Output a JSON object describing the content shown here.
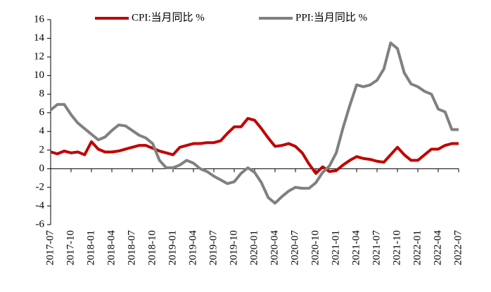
{
  "chart_data": {
    "type": "line",
    "categories": [
      "2017-07",
      null,
      null,
      "2017-10",
      null,
      null,
      "2018-01",
      null,
      null,
      "2018-04",
      null,
      null,
      "2018-07",
      null,
      null,
      "2018-10",
      null,
      null,
      "2019-01",
      null,
      null,
      "2019-04",
      null,
      null,
      "2019-07",
      null,
      null,
      "2019-10",
      null,
      null,
      "2020-01",
      null,
      null,
      "2020-04",
      null,
      null,
      "2020-07",
      null,
      null,
      "2020-10",
      null,
      null,
      "2021-01",
      null,
      null,
      "2021-04",
      null,
      null,
      "2021-07",
      null,
      null,
      "2021-10",
      null,
      null,
      "2022-01",
      null,
      null,
      "2022-04",
      null,
      null,
      "2022-07"
    ],
    "series": [
      {
        "name": "CPI:当月同比 %",
        "color": "#c00000",
        "values": [
          1.8,
          1.6,
          1.9,
          1.7,
          1.8,
          1.5,
          2.9,
          2.1,
          1.8,
          1.8,
          1.9,
          2.1,
          2.3,
          2.5,
          2.5,
          2.2,
          1.9,
          1.7,
          1.5,
          2.3,
          2.5,
          2.7,
          2.7,
          2.8,
          2.8,
          3.0,
          3.8,
          4.5,
          4.5,
          5.4,
          5.2,
          4.3,
          3.3,
          2.4,
          2.5,
          2.7,
          2.4,
          1.7,
          0.5,
          -0.5,
          0.2,
          -0.3,
          -0.2,
          0.4,
          0.9,
          1.3,
          1.1,
          1.0,
          0.8,
          0.7,
          1.5,
          2.3,
          1.5,
          0.9,
          0.9,
          1.5,
          2.1,
          2.1,
          2.5,
          2.7,
          2.7
        ]
      },
      {
        "name": "PPI:当月同比 %",
        "color": "#808080",
        "values": [
          6.3,
          6.9,
          6.9,
          5.8,
          4.9,
          4.3,
          3.7,
          3.1,
          3.4,
          4.1,
          4.7,
          4.6,
          4.1,
          3.6,
          3.3,
          2.7,
          0.9,
          0.1,
          0.1,
          0.4,
          0.9,
          0.6,
          0.0,
          -0.3,
          -0.8,
          -1.2,
          -1.6,
          -1.4,
          -0.5,
          0.1,
          -0.4,
          -1.5,
          -3.1,
          -3.7,
          -3.0,
          -2.4,
          -2.0,
          -2.1,
          -2.1,
          -1.5,
          -0.4,
          0.3,
          1.7,
          4.4,
          6.8,
          9.0,
          8.8,
          9.0,
          9.5,
          10.7,
          13.5,
          12.9,
          10.3,
          9.1,
          8.8,
          8.3,
          8.0,
          6.4,
          6.1,
          4.2,
          4.2
        ]
      }
    ],
    "ylim": [
      -6,
      16
    ],
    "yticks": [
      -6,
      -4,
      -2,
      0,
      2,
      4,
      6,
      8,
      10,
      12,
      14,
      16
    ],
    "legend": "top"
  }
}
